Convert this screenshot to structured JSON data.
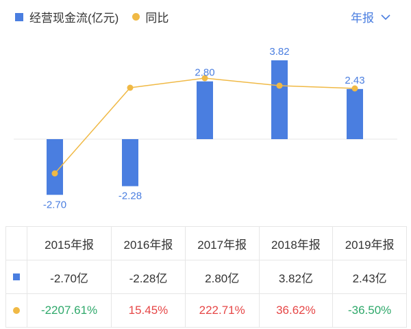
{
  "legend": {
    "bar_label": "经营现金流(亿元)",
    "line_label": "同比"
  },
  "period_selector": {
    "label": "年报"
  },
  "colors": {
    "bar": "#4a7ee0",
    "line": "#f0b945",
    "link": "#4a7ee0",
    "positive": "#e64646",
    "negative": "#2ea86a",
    "grid": "#e6e6e6"
  },
  "chart_data": {
    "type": "bar",
    "categories": [
      "2015年报",
      "2016年报",
      "2017年报",
      "2018年报",
      "2019年报"
    ],
    "series": [
      {
        "name": "经营现金流(亿元)",
        "type": "bar",
        "values": [
          -2.7,
          -2.28,
          2.8,
          3.82,
          2.43
        ],
        "labels": [
          "-2.70",
          "-2.28",
          "2.80",
          "3.82",
          "2.43"
        ]
      },
      {
        "name": "同比",
        "type": "line",
        "values": [
          -2207.61,
          15.45,
          222.71,
          36.62,
          -36.5
        ]
      }
    ],
    "line_y_relative": [
      -0.5,
      0.75,
      0.89,
      0.78,
      0.74
    ],
    "ylim": [
      -3.2,
      4.3
    ]
  },
  "table": {
    "headers": [
      "2015年报",
      "2016年报",
      "2017年报",
      "2018年报",
      "2019年报"
    ],
    "cash_row": [
      "-2.70亿",
      "-2.28亿",
      "2.80亿",
      "3.82亿",
      "2.43亿"
    ],
    "yoy_row": [
      "-2207.61%",
      "15.45%",
      "222.71%",
      "36.62%",
      "-36.50%"
    ]
  }
}
